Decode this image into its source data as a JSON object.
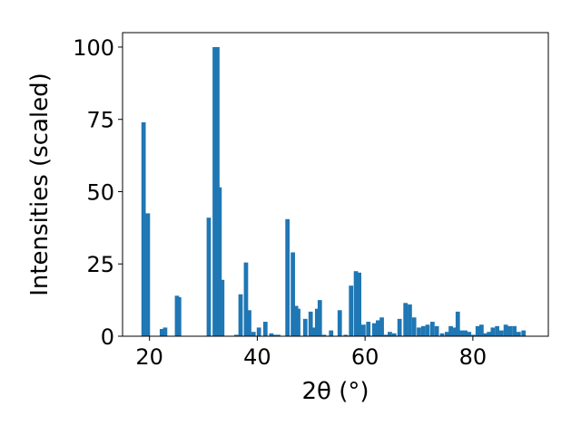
{
  "chart_data": {
    "type": "bar",
    "xlabel": "2θ (°)",
    "ylabel": "Intensities (scaled)",
    "xlim": [
      15,
      94
    ],
    "ylim": [
      0,
      105
    ],
    "xticks": [
      20,
      40,
      60,
      80
    ],
    "yticks": [
      0,
      25,
      50,
      75,
      100
    ],
    "bar_color": "#1f77b4",
    "grid": false,
    "bar_width": 0.8,
    "x": [
      18.9,
      19.7,
      22.3,
      22.9,
      25.1,
      25.5,
      31.0,
      32.1,
      32.6,
      33.0,
      33.5,
      36.1,
      36.9,
      37.9,
      38.5,
      39.3,
      40.3,
      41.5,
      42.6,
      43.3,
      43.9,
      45.6,
      46.6,
      47.2,
      47.6,
      48.9,
      49.9,
      50.5,
      51.1,
      51.6,
      52.4,
      53.7,
      55.3,
      56.4,
      57.4,
      58.3,
      58.9,
      59.7,
      60.6,
      61.7,
      62.4,
      63.1,
      63.9,
      64.6,
      65.4,
      66.4,
      67.5,
      68.3,
      69.1,
      70.0,
      70.8,
      71.6,
      72.5,
      73.3,
      74.3,
      75.2,
      75.9,
      76.6,
      77.2,
      77.9,
      78.6,
      79.3,
      80.1,
      80.9,
      81.6,
      82.3,
      83.0,
      83.7,
      84.5,
      85.3,
      86.1,
      86.9,
      87.7,
      88.5,
      89.4
    ],
    "values": [
      74,
      42.5,
      2.5,
      3,
      14,
      13.5,
      41,
      100,
      100,
      51.5,
      19.5,
      0.5,
      14.5,
      25.5,
      9,
      1.5,
      3,
      5,
      1,
      0.5,
      0.5,
      40.5,
      29,
      10.5,
      9.5,
      6,
      8.5,
      3,
      9.5,
      12.5,
      0.5,
      2,
      9,
      0.5,
      17.5,
      22.5,
      22,
      4,
      5,
      4.5,
      5.5,
      6.5,
      0.5,
      1.5,
      1,
      6,
      11.5,
      11,
      6.5,
      3,
      3.5,
      4,
      5,
      3.5,
      1,
      1.5,
      3.5,
      3,
      8.5,
      2,
      2,
      1.5,
      0.5,
      3.5,
      4,
      1,
      1.5,
      3,
      3.5,
      2,
      4,
      3.5,
      3.5,
      1.5,
      2
    ]
  }
}
